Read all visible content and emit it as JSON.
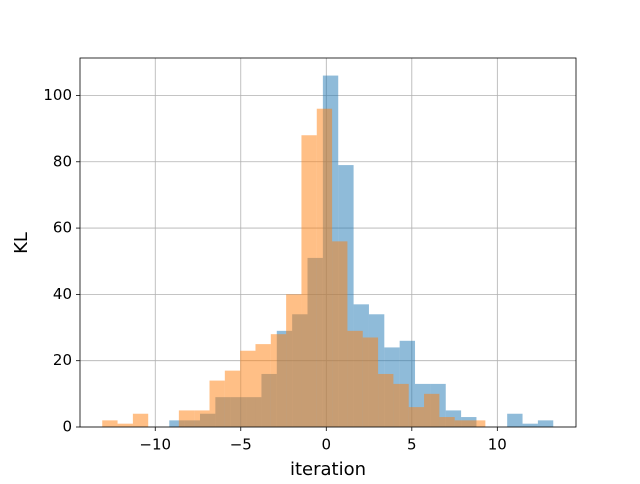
{
  "chart_data": {
    "type": "histogram",
    "x_label": "iteration",
    "y_label": "KL",
    "xlim": [
      -14.4,
      14.6
    ],
    "ylim": [
      0,
      111.3
    ],
    "xticks": [
      {
        "value": -10,
        "label": "−10"
      },
      {
        "value": -5,
        "label": "−5"
      },
      0,
      5,
      10
    ],
    "yticks": [
      0,
      20,
      40,
      60,
      80,
      100
    ],
    "grid": true,
    "opacity": 0.5,
    "series": [
      {
        "color": "#1f77b4",
        "bins": [
          -9.18,
          -8.282,
          -7.384,
          -6.486,
          -5.588,
          -4.69,
          -3.792,
          -2.894,
          -1.996,
          -1.098,
          -0.2,
          0.698,
          1.596,
          2.494,
          3.392,
          4.29,
          5.188,
          6.086,
          6.984,
          7.882,
          8.78,
          9.678,
          10.576,
          11.474,
          12.372,
          13.27
        ],
        "values": [
          2,
          2,
          4,
          9,
          9,
          9,
          16,
          29,
          34,
          51,
          106,
          79,
          37,
          34,
          24,
          26,
          13,
          13,
          5,
          3,
          0,
          0,
          4,
          1,
          2
        ]
      },
      {
        "color": "#ff7f0e",
        "bins": [
          -13.1,
          -12.204,
          -11.308,
          -10.412,
          -9.516,
          -8.62,
          -7.724,
          -6.828,
          -5.932,
          -5.036,
          -4.14,
          -3.244,
          -2.348,
          -1.452,
          -0.556,
          0.34,
          1.236,
          2.132,
          3.028,
          3.924,
          4.82,
          5.716,
          6.612,
          7.508,
          8.404,
          9.3
        ],
        "values": [
          2,
          1,
          4,
          0,
          0,
          5,
          5,
          14,
          17,
          23,
          25,
          28,
          40,
          88,
          96,
          56,
          29,
          27,
          16,
          13,
          6,
          10,
          3,
          2,
          2
        ]
      }
    ]
  }
}
